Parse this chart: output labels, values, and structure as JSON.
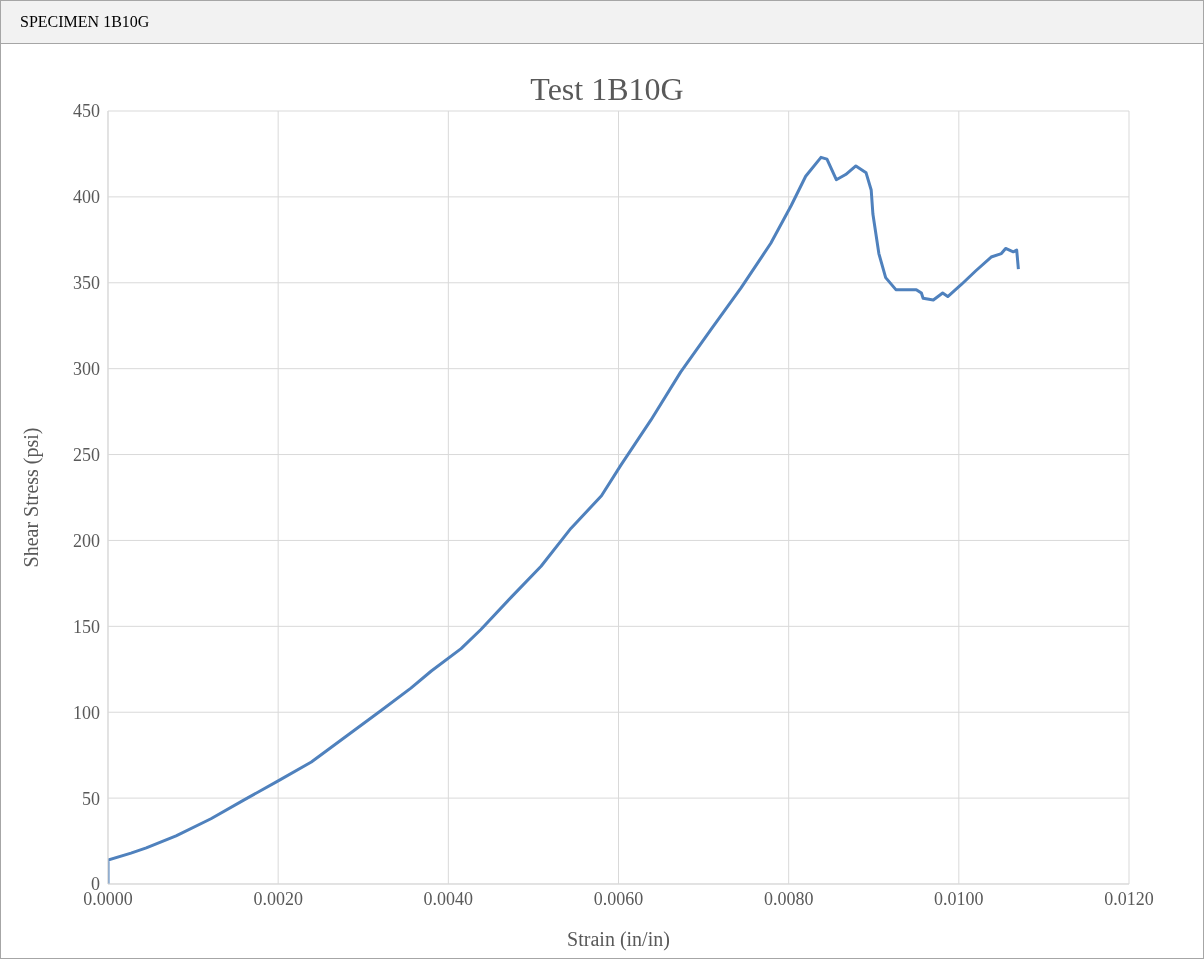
{
  "chart_data": {
    "type": "line",
    "title": "Test 1B10G",
    "xlabel": "Strain (in/in)",
    "ylabel": "Shear Stress (psi)",
    "annotations": [
      "SPECIMEN 1B10G"
    ],
    "x": [
      0,
      0,
      0.00027,
      0.00045,
      0.0008,
      0.00121,
      0.0016,
      0.002,
      0.00239,
      0.0028,
      0.00321,
      0.00356,
      0.0038,
      0.00415,
      0.00438,
      0.00474,
      0.00509,
      0.00544,
      0.0058,
      0.00603,
      0.00638,
      0.00673,
      0.00709,
      0.00744,
      0.00779,
      0.00803,
      0.0082,
      0.00838,
      0.00845,
      0.00856,
      0.00867,
      0.00879,
      0.00891,
      0.00897,
      0.00899,
      0.00906,
      0.00914,
      0.00926,
      0.0095,
      0.00956,
      0.00958,
      0.0097,
      0.00981,
      0.00987,
      0.01003,
      0.0102,
      0.01038,
      0.0105,
      0.01055,
      0.01064,
      0.01068,
      0.0107
    ],
    "series": [
      {
        "color": "#4f81bd",
        "values": [
          0,
          14,
          18,
          21,
          28,
          38,
          49,
          60,
          71,
          86,
          101,
          114,
          124,
          137,
          148,
          167,
          185,
          207,
          226,
          244,
          270,
          298,
          323,
          347,
          373,
          395,
          412,
          423,
          422,
          410,
          413,
          418,
          414,
          404,
          390,
          367,
          353,
          346,
          346,
          344,
          341,
          340,
          344,
          342,
          349,
          357,
          365,
          367,
          370,
          368,
          369,
          358
        ]
      }
    ],
    "xlim": [
      0,
      0.012
    ],
    "xticks": [
      {
        "value": 0,
        "label": "0.0000"
      },
      {
        "value": 0.002,
        "label": "0.0020"
      },
      {
        "value": 0.004,
        "label": "0.0040"
      },
      {
        "value": 0.006,
        "label": "0.0060"
      },
      {
        "value": 0.008,
        "label": "0.0080"
      },
      {
        "value": 0.01,
        "label": "0.0100"
      },
      {
        "value": 0.012,
        "label": "0.0120"
      }
    ],
    "ylim": [
      0,
      450
    ],
    "yticks": [
      0,
      50,
      100,
      150,
      200,
      250,
      300,
      350,
      400,
      450
    ],
    "grid": true,
    "legend": false,
    "marker": "none",
    "line_style": "solid"
  }
}
